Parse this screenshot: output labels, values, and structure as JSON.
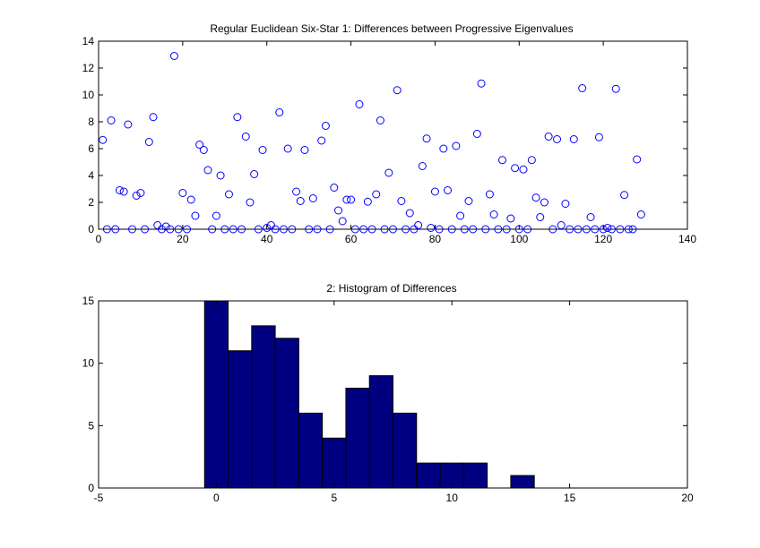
{
  "chart_data": [
    {
      "type": "scatter",
      "title": "Regular Euclidean Six-Star 1: Differences between Progressive Eigenvalues",
      "xlabel": "",
      "ylabel": "",
      "xlim": [
        0,
        140
      ],
      "ylim": [
        0,
        14
      ],
      "xticks": [
        0,
        20,
        40,
        60,
        80,
        100,
        120,
        140
      ],
      "yticks": [
        0,
        2,
        4,
        6,
        8,
        10,
        12,
        14
      ],
      "marker": "o",
      "color": "#0000ff",
      "grid": false,
      "x": [
        1,
        2,
        3,
        4,
        5,
        6,
        7,
        8,
        9,
        10,
        11,
        12,
        13,
        14,
        15,
        16,
        17,
        18,
        19,
        20,
        21,
        22,
        23,
        24,
        25,
        26,
        27,
        28,
        29,
        30,
        31,
        32,
        33,
        34,
        35,
        36,
        37,
        38,
        39,
        40,
        41,
        42,
        43,
        44,
        45,
        46,
        47,
        48,
        49,
        50,
        51,
        52,
        53,
        54,
        55,
        56,
        57,
        58,
        59,
        60,
        61,
        62,
        63,
        64,
        65,
        66,
        67,
        68,
        69,
        70,
        71,
        72,
        73,
        74,
        75,
        76,
        77,
        78,
        79,
        80,
        81,
        82,
        83,
        84,
        85,
        86,
        87,
        88,
        89,
        90,
        91,
        92,
        93,
        94,
        95,
        96,
        97,
        98,
        99,
        100,
        101,
        102,
        103,
        104,
        105,
        106,
        107,
        108,
        109,
        110,
        111,
        112,
        113,
        114,
        115,
        116,
        117,
        118,
        119,
        120,
        121,
        122,
        123,
        124,
        125,
        126,
        127,
        128,
        129
      ],
      "y": [
        6.65,
        0,
        8.1,
        0,
        2.9,
        2.8,
        7.8,
        0,
        2.5,
        2.7,
        0,
        6.5,
        8.35,
        0.3,
        0,
        0.2,
        0,
        12.9,
        0,
        2.7,
        0,
        2.2,
        1.0,
        6.3,
        5.9,
        4.4,
        0,
        1.0,
        4.0,
        0,
        2.6,
        0,
        8.35,
        0,
        6.9,
        2.0,
        4.1,
        0,
        5.9,
        0.1,
        0.3,
        0,
        8.7,
        0,
        6.0,
        0,
        2.8,
        2.1,
        5.9,
        0,
        2.3,
        0,
        6.6,
        7.7,
        0,
        3.1,
        1.4,
        0.6,
        2.2,
        2.2,
        0,
        9.3,
        0,
        2.05,
        0,
        2.6,
        8.1,
        0,
        4.2,
        0,
        10.35,
        2.1,
        0,
        1.2,
        0,
        0.3,
        4.7,
        6.75,
        0.1,
        2.8,
        0,
        6.0,
        2.9,
        0,
        6.2,
        1.0,
        0,
        2.1,
        0,
        7.1,
        10.85,
        0,
        2.6,
        1.1,
        0,
        5.15,
        0,
        0.8,
        4.55,
        0,
        4.45,
        0,
        5.15,
        2.35,
        0.9,
        2.0,
        6.9,
        0,
        6.7,
        0.3,
        1.9,
        0,
        6.7,
        0,
        10.5,
        0,
        0.9,
        0,
        6.85,
        0,
        0.1,
        0,
        10.45,
        0,
        2.55,
        0,
        0,
        5.2,
        1.1
      ]
    },
    {
      "type": "bar",
      "subtype": "histogram",
      "title": "2: Histogram of Differences",
      "xlabel": "",
      "ylabel": "",
      "xlim": [
        -5,
        20
      ],
      "ylim": [
        0,
        15
      ],
      "xticks": [
        -5,
        0,
        5,
        10,
        15,
        20
      ],
      "yticks": [
        0,
        5,
        10,
        15
      ],
      "bin_width": 1,
      "bin_centers": [
        0,
        1,
        2,
        3,
        4,
        5,
        6,
        7,
        8,
        9,
        10,
        11,
        12,
        13
      ],
      "values": [
        15,
        11,
        13,
        12,
        6,
        4,
        8,
        9,
        6,
        2,
        2,
        2,
        0,
        1
      ],
      "color": "#000080",
      "grid": false
    }
  ]
}
